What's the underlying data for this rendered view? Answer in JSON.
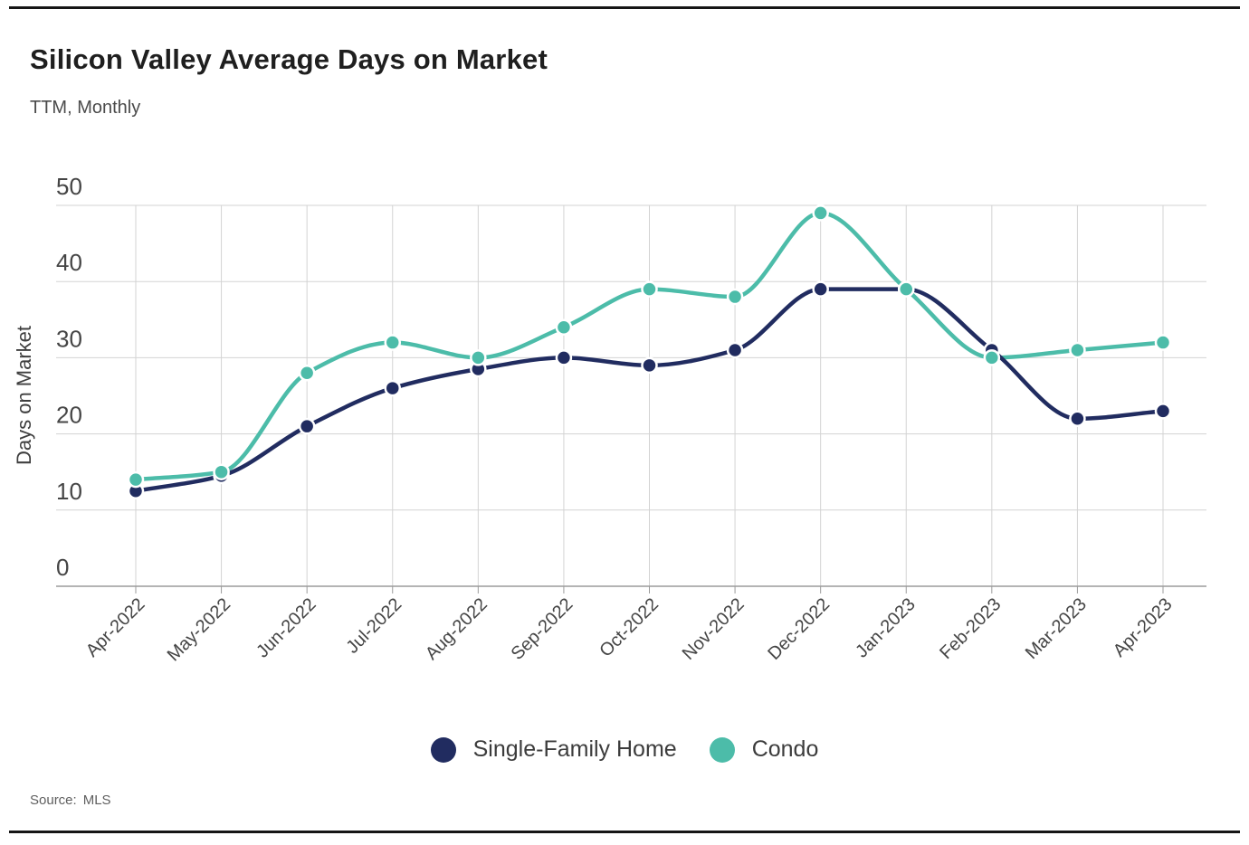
{
  "header": {
    "title": "Silicon Valley Average Days on Market",
    "subtitle": "TTM, Monthly"
  },
  "footer": {
    "source_label": "Source:",
    "source_value": "MLS"
  },
  "colors": {
    "single_family": "#212c60",
    "condo": "#4cbca9",
    "grid": "#d3d3d3",
    "axis": "#9b9b9b",
    "tick_label": "#454545",
    "axis_title": "#3e3e3e"
  },
  "chart_data": {
    "type": "line",
    "title": "Silicon Valley Average Days on Market",
    "subtitle": "TTM, Monthly",
    "xlabel": "",
    "ylabel": "Days on Market",
    "x": [
      "Apr-2022",
      "May-2022",
      "Jun-2022",
      "Jul-2022",
      "Aug-2022",
      "Sep-2022",
      "Oct-2022",
      "Nov-2022",
      "Dec-2022",
      "Jan-2023",
      "Feb-2023",
      "Mar-2023",
      "Apr-2023"
    ],
    "series": [
      {
        "name": "Single-Family Home",
        "color": "#212c60",
        "values": [
          12.5,
          14.5,
          21,
          26,
          28.5,
          30,
          29,
          31,
          39,
          39,
          31,
          22,
          23
        ]
      },
      {
        "name": "Condo",
        "color": "#4cbca9",
        "values": [
          14,
          15,
          28,
          32,
          30,
          34,
          39,
          38,
          49,
          39,
          30,
          31,
          32
        ]
      }
    ],
    "ylim": [
      0,
      50
    ],
    "yticks": [
      0,
      10,
      20,
      30,
      40,
      50
    ],
    "grid": true,
    "curve": "monotone",
    "legend_position": "bottom",
    "source": "MLS"
  }
}
